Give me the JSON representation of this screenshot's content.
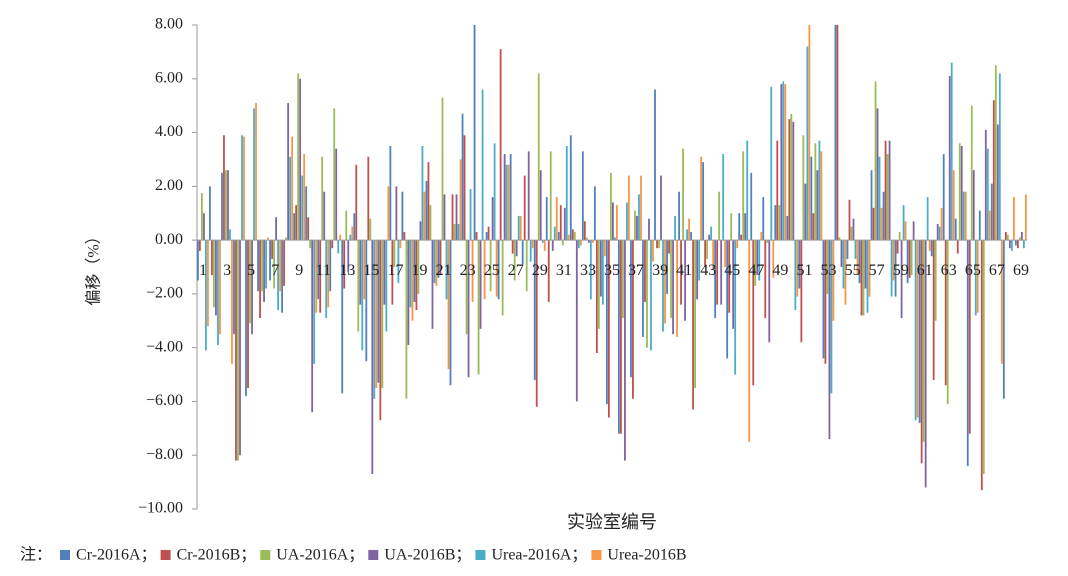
{
  "chart_data": {
    "type": "bar",
    "y_label": "偏移（%）",
    "x_label": "实验室编号",
    "legend_note": "注：",
    "legend_separator": "；",
    "legend": "bottom",
    "ylim": [
      -10,
      8
    ],
    "yticks": [
      {
        "value": 8,
        "label": "8.00"
      },
      {
        "value": 6,
        "label": "6.00"
      },
      {
        "value": 4,
        "label": "4.00"
      },
      {
        "value": 2,
        "label": "2.00"
      },
      {
        "value": 0,
        "label": "0.00"
      },
      {
        "value": -2,
        "label": "−2.00"
      },
      {
        "value": -4,
        "label": "−4.00"
      },
      {
        "value": -6,
        "label": "−6.00"
      },
      {
        "value": -8,
        "label": "−8.00"
      },
      {
        "value": -10,
        "label": "−10.00"
      }
    ],
    "categories": [
      "1",
      null,
      "3",
      null,
      "5",
      null,
      "7",
      null,
      "9",
      null,
      "11",
      null,
      "13",
      null,
      "15",
      null,
      "17",
      null,
      "19",
      null,
      "21",
      null,
      "23",
      null,
      "25",
      null,
      "27",
      null,
      "29",
      null,
      "31",
      null,
      "33",
      null,
      "35",
      null,
      "37",
      null,
      "39",
      null,
      "41",
      null,
      "43",
      null,
      "45",
      null,
      "47",
      null,
      "49",
      null,
      "51",
      null,
      "53",
      null,
      "55",
      null,
      "57",
      null,
      "59",
      null,
      "61",
      null,
      "63",
      null,
      "65",
      null,
      "67",
      null,
      "69"
    ],
    "series": [
      {
        "name": "Cr-2016A",
        "color": "#4f81bd",
        "values": [
          -1.5,
          2.0,
          2.5,
          -3.5,
          -5.8,
          -1.9,
          -1.5,
          -2.7,
          1.0,
          2.0,
          -2.2,
          -1.9,
          -5.7,
          1.0,
          -4.5,
          -5.3,
          3.5,
          1.8,
          -2.3,
          2.2,
          -1.4,
          -5.4,
          4.7,
          8.0,
          0.3,
          -2.2,
          3.2,
          -0.9,
          -5.2,
          1.6,
          0.3,
          3.9,
          3.3,
          2.0,
          -6.1,
          -7.2,
          -5.1,
          -3.6,
          5.6,
          -2.0,
          1.8,
          0.3,
          2.9,
          -2.9,
          -4.4,
          1.0,
          2.5,
          1.6,
          1.3,
          0.9,
          -1.8,
          3.1,
          -4.4,
          8.0,
          -0.7,
          -1.6,
          2.6,
          1.8,
          -2.1,
          -1.6,
          -6.8,
          -0.6,
          3.2,
          0.8,
          -8.4,
          1.1,
          2.1,
          -5.9,
          -0.2
        ]
      },
      {
        "name": "Cr-2016B",
        "color": "#c0504d",
        "values": [
          -0.4,
          -1.3,
          3.9,
          -8.2,
          -5.5,
          -2.9,
          -0.7,
          -1.7,
          1.3,
          0.85,
          -2.7,
          -0.3,
          -1.8,
          2.8,
          3.1,
          -6.7,
          -2.4,
          0.3,
          -2.6,
          2.9,
          -1.3,
          1.7,
          3.9,
          0.3,
          0.5,
          7.1,
          -0.5,
          2.4,
          -6.2,
          -2.3,
          1.3,
          0.4,
          0.7,
          -4.2,
          -6.6,
          -7.2,
          -5.9,
          -2.3,
          -0.3,
          -0.5,
          -2.4,
          -6.3,
          -1.0,
          -2.4,
          -2.7,
          0.2,
          -5.4,
          -2.9,
          3.7,
          4.5,
          -3.8,
          1.0,
          -4.6,
          8.0,
          1.5,
          -2.8,
          1.2,
          3.7,
          -0.5,
          -1.4,
          -8.3,
          -5.2,
          -5.4,
          -0.5,
          -7.2,
          -9.3,
          5.2,
          0.3,
          -0.3
        ]
      },
      {
        "name": "UA-2016A",
        "color": "#9bbb59",
        "values": [
          1.75,
          -2.5,
          2.6,
          -8.2,
          -3.1,
          -1.9,
          -1.8,
          0.1,
          6.2,
          -0.3,
          3.1,
          4.9,
          1.1,
          -3.4,
          0.8,
          -5.5,
          -1.0,
          -5.9,
          -2.0,
          1.3,
          5.3,
          0.6,
          -3.5,
          -5.0,
          -1.9,
          -2.8,
          -1.5,
          -1.9,
          6.2,
          3.3,
          -0.2,
          0.3,
          0.1,
          -3.3,
          2.5,
          -2.9,
          1.1,
          -4.0,
          -0.3,
          -2.9,
          3.4,
          -5.5,
          -0.7,
          1.8,
          1.0,
          3.3,
          -1.7,
          -0.1,
          1.3,
          4.7,
          3.9,
          3.6,
          -2.0,
          0.1,
          0.5,
          -2.8,
          5.9,
          3.2,
          0.3,
          -1.3,
          -7.5,
          -3.0,
          -6.1,
          3.6,
          5.0,
          -8.7,
          6.5,
          0.2,
          0.1
        ]
      },
      {
        "name": "UA-2016B",
        "color": "#8064a2",
        "values": [
          1.0,
          -2.8,
          2.6,
          -8.0,
          -3.5,
          -2.3,
          0.85,
          5.1,
          6.0,
          -6.4,
          1.8,
          3.4,
          -1.2,
          -2.4,
          -8.7,
          -2.4,
          2.0,
          -3.9,
          0.7,
          -3.3,
          1.7,
          1.7,
          -5.1,
          -3.3,
          1.6,
          3.2,
          -0.6,
          3.3,
          2.6,
          -0.4,
          1.2,
          -6.0,
          -0.1,
          -2.1,
          1.4,
          -8.2,
          0.9,
          0.8,
          2.4,
          -3.5,
          -3.0,
          -2.2,
          0.2,
          -2.4,
          -3.3,
          1.0,
          -1.3,
          -3.8,
          5.8,
          4.4,
          2.1,
          2.6,
          -7.4,
          -1.0,
          0.8,
          -1.8,
          4.9,
          3.7,
          -2.9,
          0.7,
          -9.2,
          0.6,
          6.1,
          3.5,
          2.6,
          4.1,
          4.3,
          -0.3,
          0.3
        ]
      },
      {
        "name": "Urea-2016A",
        "color": "#4bacc6",
        "values": [
          -4.1,
          -3.9,
          0.4,
          3.9,
          4.9,
          -1.8,
          -2.6,
          3.1,
          2.4,
          -4.6,
          -2.9,
          -0.5,
          0.2,
          -4.1,
          -5.9,
          -3.4,
          -1.6,
          -2.5,
          3.5,
          -1.6,
          -2.2,
          0.6,
          1.9,
          5.6,
          3.6,
          2.8,
          0.9,
          -0.8,
          -0.1,
          0.5,
          3.5,
          -0.3,
          -2.2,
          -2.4,
          0.1,
          1.4,
          1.7,
          -4.1,
          -3.4,
          0.9,
          0.4,
          -1.5,
          0.5,
          3.2,
          -5.0,
          3.7,
          -1.5,
          5.7,
          5.9,
          -2.6,
          7.2,
          3.7,
          -5.7,
          -1.8,
          -0.7,
          -2.7,
          3.1,
          -2.1,
          1.3,
          -6.7,
          1.6,
          0.5,
          6.6,
          1.8,
          -2.8,
          3.4,
          6.2,
          -0.4,
          -0.3
        ]
      },
      {
        "name": "Urea-2016B",
        "color": "#f79646",
        "values": [
          -3.2,
          -3.5,
          -4.6,
          3.85,
          5.1,
          0.1,
          -1.9,
          3.85,
          3.2,
          -2.7,
          -2.5,
          0.2,
          0.5,
          -2.2,
          -5.5,
          2.0,
          -0.3,
          -3.0,
          1.8,
          -1.7,
          -4.8,
          3.0,
          -2.3,
          -2.2,
          -2.1,
          2.8,
          0.9,
          -0.3,
          -0.4,
          1.6,
          0.2,
          -0.2,
          -0.1,
          -0.6,
          1.3,
          2.4,
          2.4,
          -0.8,
          -3.1,
          -3.6,
          0.8,
          3.1,
          -1.1,
          -1.0,
          -0.3,
          -7.5,
          0.3,
          -1.4,
          5.8,
          -2.1,
          8.0,
          3.3,
          -3.0,
          -2.4,
          -1.3,
          -2.1,
          1.2,
          -1.5,
          0.7,
          -6.6,
          -0.4,
          1.2,
          2.6,
          1.8,
          -2.7,
          1.1,
          -4.6,
          1.6,
          1.7
        ]
      }
    ]
  }
}
